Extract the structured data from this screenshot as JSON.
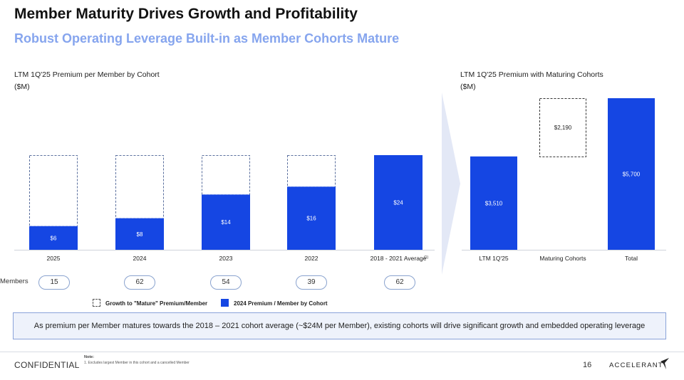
{
  "header": {
    "title": "Member Maturity Drives Growth and Profitability",
    "subtitle": "Robust Operating Leverage Built-in as Member Cohorts Mature"
  },
  "colors": {
    "bar": "#1546e3",
    "dash": "#5a6f9e",
    "accent_text": "#86a5ee",
    "arrow": "#e3e8f6"
  },
  "chart_data": [
    {
      "type": "bar",
      "title": "LTM 1Q'25 Premium per Member by Cohort",
      "ylabel": "($M)",
      "categories": [
        "2025",
        "2024",
        "2023",
        "2022",
        "2018 - 2021 Average"
      ],
      "category_footnote": "(1)",
      "series": [
        {
          "name": "2024 Premium / Member by Cohort",
          "values": [
            6,
            8,
            14,
            16,
            24
          ]
        },
        {
          "name": "Growth to \"Mature\" Premium/Member",
          "values": [
            18,
            16,
            10,
            8,
            0
          ]
        }
      ],
      "data_labels": [
        "$6",
        "$8",
        "$14",
        "$16",
        "$24"
      ],
      "ylim": [
        0,
        24
      ],
      "legend": [
        "Growth to \"Mature\" Premium/Member",
        "2024 Premium / Member by Cohort"
      ],
      "members_label": "Members",
      "members": [
        "15",
        "62",
        "54",
        "39",
        "62"
      ]
    },
    {
      "type": "bar",
      "title": "LTM 1Q'25 Premium with Maturing Cohorts",
      "ylabel": "($M)",
      "categories": [
        "LTM 1Q'25",
        "Maturing Cohorts",
        "Total"
      ],
      "bars": [
        {
          "label": "$3,510",
          "base": 0,
          "value": 3510,
          "style": "solid"
        },
        {
          "label": "$2,190",
          "base": 3510,
          "value": 2190,
          "style": "dashed"
        },
        {
          "label": "$5,700",
          "base": 0,
          "value": 5700,
          "style": "solid"
        }
      ],
      "ylim": [
        0,
        5700
      ]
    }
  ],
  "callout": "As premium per Member matures towards the 2018 – 2021 cohort average (~$24M per Member), existing cohorts will drive significant growth and embedded operating leverage",
  "footer": {
    "confidential": "CONFIDENTIAL",
    "note_title": "Note:",
    "note_text": "1.   Excludes largest Member in this cohort and a cancelled Member",
    "page": "16",
    "brand": "ACCELERANT"
  }
}
